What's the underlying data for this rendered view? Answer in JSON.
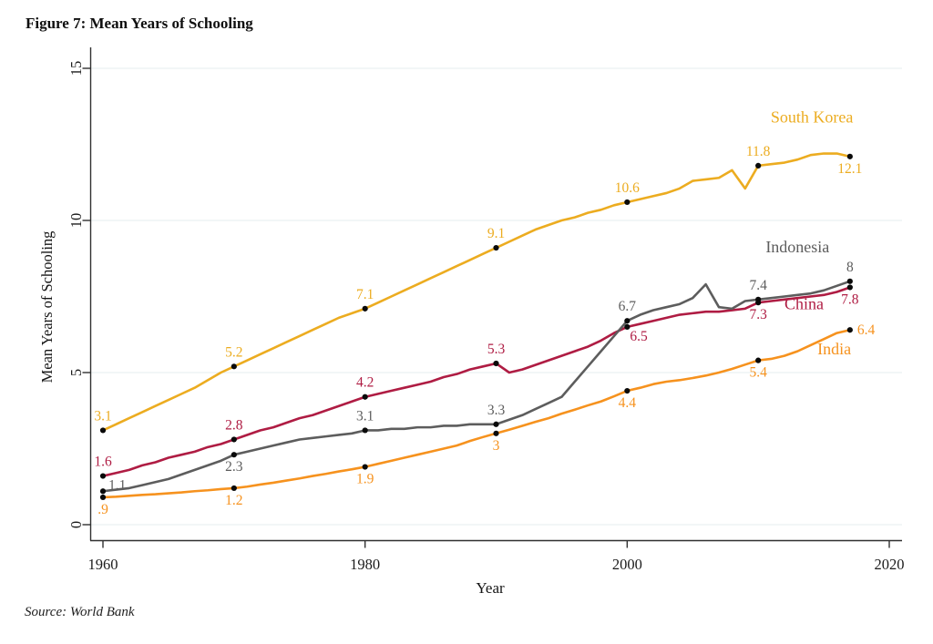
{
  "chart_data": {
    "type": "line",
    "title": "Figure 7: Mean Years of Schooling",
    "source": "Source: World Bank",
    "xlabel": "Year",
    "ylabel": "Mean Years of Schooling",
    "xlim": [
      1960,
      2020
    ],
    "ylim": [
      0,
      15
    ],
    "x_ticks": [
      1960,
      1980,
      2000,
      2020
    ],
    "y_ticks": [
      0,
      5,
      10,
      15
    ],
    "grid": "horizontal-light",
    "legend_position": "inline-right-labels",
    "x_start_year": 1960,
    "x_end_year": 2017,
    "style": {
      "grid_color": "#E4EDEF",
      "axis_color": "#303030",
      "marker_color": "#0a0a0a",
      "background": "#FFFFFF"
    },
    "series": [
      {
        "name": "South Korea",
        "color": "#ECAC20",
        "name_label": {
          "year": 2014.1,
          "value": 13.22
        },
        "values": [
          3.1,
          3.3,
          3.5,
          3.7,
          3.9,
          4.1,
          4.3,
          4.5,
          4.75,
          5.0,
          5.2,
          5.4,
          5.6,
          5.8,
          6.0,
          6.2,
          6.4,
          6.6,
          6.8,
          6.95,
          7.1,
          7.3,
          7.5,
          7.7,
          7.9,
          8.1,
          8.3,
          8.5,
          8.7,
          8.9,
          9.1,
          9.3,
          9.5,
          9.7,
          9.85,
          10.0,
          10.1,
          10.25,
          10.35,
          10.5,
          10.6,
          10.7,
          10.8,
          10.9,
          11.05,
          11.3,
          11.35,
          11.4,
          11.65,
          11.05,
          11.8,
          11.85,
          11.9,
          12.0,
          12.15,
          12.2,
          12.2,
          12.1
        ],
        "markers": [
          {
            "year": 1960,
            "label": "3.1",
            "pos": "above"
          },
          {
            "year": 1970,
            "label": "5.2",
            "pos": "above"
          },
          {
            "year": 1980,
            "label": "7.1",
            "pos": "above"
          },
          {
            "year": 1990,
            "label": "9.1",
            "pos": "above"
          },
          {
            "year": 2000,
            "label": "10.6",
            "pos": "above"
          },
          {
            "year": 2010,
            "label": "11.8",
            "pos": "above"
          },
          {
            "year": 2017,
            "label": "12.1",
            "pos": "below"
          }
        ]
      },
      {
        "name": "China",
        "color": "#AF1C43",
        "name_label": {
          "year": 2013.5,
          "value": 7.08
        },
        "values": [
          1.6,
          1.7,
          1.8,
          1.95,
          2.05,
          2.2,
          2.3,
          2.4,
          2.55,
          2.65,
          2.8,
          2.95,
          3.1,
          3.2,
          3.35,
          3.5,
          3.6,
          3.75,
          3.9,
          4.05,
          4.2,
          4.3,
          4.4,
          4.5,
          4.6,
          4.7,
          4.85,
          4.95,
          5.1,
          5.2,
          5.3,
          5.0,
          5.1,
          5.25,
          5.4,
          5.55,
          5.7,
          5.85,
          6.05,
          6.3,
          6.5,
          6.6,
          6.7,
          6.8,
          6.9,
          6.95,
          7.0,
          7.0,
          7.05,
          7.1,
          7.3,
          7.35,
          7.4,
          7.45,
          7.5,
          7.55,
          7.65,
          7.8
        ],
        "markers": [
          {
            "year": 1960,
            "label": "1.6",
            "pos": "above"
          },
          {
            "year": 1970,
            "label": "2.8",
            "pos": "above"
          },
          {
            "year": 1980,
            "label": "4.2",
            "pos": "above"
          },
          {
            "year": 1990,
            "label": "5.3",
            "pos": "above"
          },
          {
            "year": 2000,
            "label": "6.5",
            "pos": "below-right"
          },
          {
            "year": 2010,
            "label": "7.3",
            "pos": "below"
          },
          {
            "year": 2017,
            "label": "7.8",
            "pos": "below"
          }
        ]
      },
      {
        "name": "Indonesia",
        "color": "#5D5D5D",
        "name_label": {
          "year": 2013.0,
          "value": 8.95
        },
        "values": [
          1.1,
          1.15,
          1.2,
          1.3,
          1.4,
          1.5,
          1.65,
          1.8,
          1.95,
          2.1,
          2.3,
          2.4,
          2.5,
          2.6,
          2.7,
          2.8,
          2.85,
          2.9,
          2.95,
          3.0,
          3.1,
          3.1,
          3.15,
          3.15,
          3.2,
          3.2,
          3.25,
          3.25,
          3.3,
          3.3,
          3.3,
          3.45,
          3.6,
          3.8,
          4.0,
          4.2,
          4.7,
          5.2,
          5.7,
          6.2,
          6.7,
          6.9,
          7.05,
          7.15,
          7.25,
          7.45,
          7.9,
          7.15,
          7.1,
          7.35,
          7.4,
          7.45,
          7.5,
          7.55,
          7.6,
          7.7,
          7.85,
          8.0
        ],
        "markers": [
          {
            "year": 1960,
            "label": "1.1",
            "pos": "right-up"
          },
          {
            "year": 1970,
            "label": "2.3",
            "pos": "below"
          },
          {
            "year": 1980,
            "label": "3.1",
            "pos": "above"
          },
          {
            "year": 1990,
            "label": "3.3",
            "pos": "above"
          },
          {
            "year": 2000,
            "label": "6.7",
            "pos": "above"
          },
          {
            "year": 2010,
            "label": "7.4",
            "pos": "above"
          },
          {
            "year": 2017,
            "label": "8",
            "pos": "above"
          }
        ]
      },
      {
        "name": "India",
        "color": "#F6921E",
        "name_label": {
          "year": 2015.8,
          "value": 5.6
        },
        "values": [
          0.9,
          0.92,
          0.95,
          0.98,
          1.0,
          1.03,
          1.06,
          1.1,
          1.13,
          1.17,
          1.2,
          1.25,
          1.32,
          1.38,
          1.45,
          1.52,
          1.6,
          1.67,
          1.75,
          1.82,
          1.9,
          2.0,
          2.1,
          2.2,
          2.3,
          2.4,
          2.5,
          2.6,
          2.75,
          2.88,
          3.0,
          3.12,
          3.25,
          3.38,
          3.5,
          3.65,
          3.78,
          3.92,
          4.05,
          4.22,
          4.4,
          4.5,
          4.62,
          4.7,
          4.75,
          4.82,
          4.9,
          5.0,
          5.12,
          5.26,
          5.4,
          5.45,
          5.55,
          5.7,
          5.9,
          6.1,
          6.3,
          6.4
        ],
        "markers": [
          {
            "year": 1960,
            "label": ".9",
            "pos": "below"
          },
          {
            "year": 1970,
            "label": "1.2",
            "pos": "below"
          },
          {
            "year": 1980,
            "label": "1.9",
            "pos": "below"
          },
          {
            "year": 1990,
            "label": "3",
            "pos": "below"
          },
          {
            "year": 2000,
            "label": "4.4",
            "pos": "below"
          },
          {
            "year": 2010,
            "label": "5.4",
            "pos": "below"
          },
          {
            "year": 2017,
            "label": "6.4",
            "pos": "right"
          }
        ]
      }
    ]
  }
}
